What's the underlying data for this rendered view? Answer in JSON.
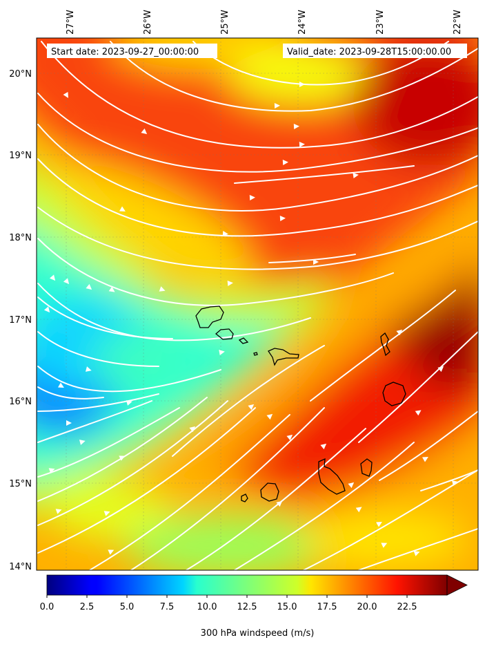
{
  "header": {
    "start_date": "Start date: 2023-09-27_00:00:00",
    "valid_date": "Valid_date: 2023-09-28T15:00:00.00"
  },
  "axes": {
    "lon_labels": [
      "27°W",
      "26°W",
      "25°W",
      "24°W",
      "23°W",
      "22°W"
    ],
    "lat_labels": [
      "20°N",
      "19°N",
      "18°N",
      "17°N",
      "16°N",
      "15°N",
      "14°N"
    ]
  },
  "colorbar": {
    "label": "300 hPa windspeed (m/s)",
    "ticks": [
      "0.0",
      "2.5",
      "5.0",
      "7.5",
      "10.0",
      "12.5",
      "15.0",
      "17.5",
      "20.0",
      "22.5"
    ],
    "min": 0,
    "max": 25,
    "extend": "max",
    "colormap": "jet"
  },
  "colors": {
    "streamline": "#ffffff",
    "coastline": "#000000"
  }
}
